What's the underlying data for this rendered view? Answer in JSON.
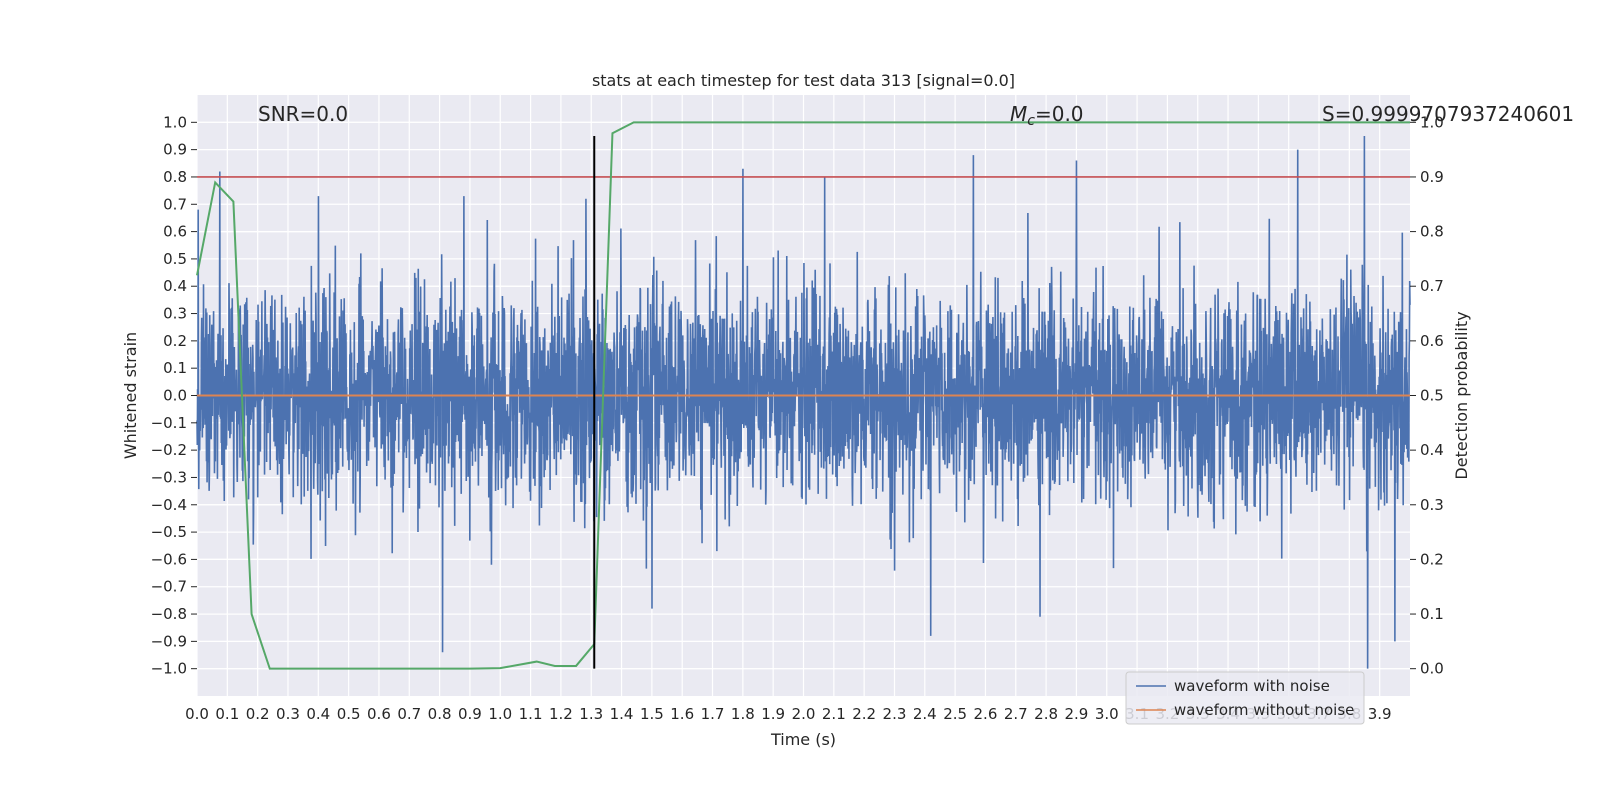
{
  "chart_data": {
    "type": "line",
    "title": "stats at each timestep for test data 313 [signal=0.0]",
    "xlabel": "Time (s)",
    "ylabel": "Whitened strain",
    "y2label": "Detection probability",
    "xlim": [
      0.0,
      4.0
    ],
    "ylim": [
      -1.1,
      1.1
    ],
    "y2lim": [
      -0.05,
      1.05
    ],
    "xticks": [
      0.0,
      0.1,
      0.2,
      0.3,
      0.4,
      0.5,
      0.6,
      0.7,
      0.8,
      0.9,
      1.0,
      1.1,
      1.2,
      1.3,
      1.4,
      1.5,
      1.6,
      1.7,
      1.8,
      1.9,
      2.0,
      2.1,
      2.2,
      2.3,
      2.4,
      2.5,
      2.6,
      2.7,
      2.8,
      2.9,
      3.0,
      3.1,
      3.2,
      3.3,
      3.4,
      3.5,
      3.6,
      3.7,
      3.8,
      3.9
    ],
    "yticks": [
      -1.0,
      -0.9,
      -0.8,
      -0.7,
      -0.6,
      -0.5,
      -0.4,
      -0.3,
      -0.2,
      -0.1,
      0.0,
      0.1,
      0.2,
      0.3,
      0.4,
      0.5,
      0.6,
      0.7,
      0.8,
      0.9,
      1.0
    ],
    "y2ticks": [
      0.0,
      0.1,
      0.2,
      0.3,
      0.4,
      0.5,
      0.6,
      0.7,
      0.8,
      0.9,
      1.0
    ],
    "grid": true,
    "legend_position": "lower-right",
    "annotations": {
      "snr": "SNR=0.0",
      "mc_symbol": "M",
      "mc_sub": "c",
      "mc_value": "=0.0",
      "s": "S=0.9999707937240601"
    },
    "series": [
      {
        "name": "waveform with noise",
        "color": "#4c72b0",
        "axis": "left",
        "kind": "noise",
        "peaks": [
          {
            "x": 0.075,
            "y": 0.82
          },
          {
            "x": 0.81,
            "y": -0.94
          },
          {
            "x": 1.8,
            "y": 0.83
          },
          {
            "x": 2.07,
            "y": 0.8
          },
          {
            "x": 2.56,
            "y": 0.88
          },
          {
            "x": 2.9,
            "y": 0.86
          },
          {
            "x": 3.63,
            "y": 0.9
          },
          {
            "x": 3.85,
            "y": 0.95
          },
          {
            "x": 3.86,
            "y": -1.0
          },
          {
            "x": 2.78,
            "y": -0.81
          },
          {
            "x": 2.42,
            "y": -0.88
          },
          {
            "x": 3.95,
            "y": -0.9
          },
          {
            "x": 0.4,
            "y": 0.73
          },
          {
            "x": 0.88,
            "y": 0.73
          },
          {
            "x": 1.5,
            "y": -0.78
          }
        ]
      },
      {
        "name": "waveform without noise",
        "color": "#dd8452",
        "axis": "left",
        "x": [
          0.0,
          4.0
        ],
        "y": [
          0.0,
          0.0
        ]
      },
      {
        "color": "#55a868",
        "axis": "right",
        "x": [
          0.0,
          0.06,
          0.12,
          0.18,
          0.24,
          0.3,
          0.5,
          0.7,
          0.9,
          1.0,
          1.12,
          1.18,
          1.25,
          1.31,
          1.37,
          1.44,
          1.6,
          4.0
        ],
        "y": [
          0.72,
          0.89,
          0.855,
          0.1,
          0.0,
          0.0,
          0.0,
          0.0,
          0.0,
          0.001,
          0.013,
          0.005,
          0.005,
          0.045,
          0.98,
          1.0,
          1.0,
          1.0
        ]
      }
    ],
    "reference_lines": [
      {
        "orientation": "horizontal",
        "axis": "right",
        "value": 0.9,
        "color": "#c44e52"
      },
      {
        "orientation": "vertical",
        "x": 1.31,
        "y_from": -1.0,
        "y_to": 0.95,
        "color": "#000000"
      }
    ]
  }
}
